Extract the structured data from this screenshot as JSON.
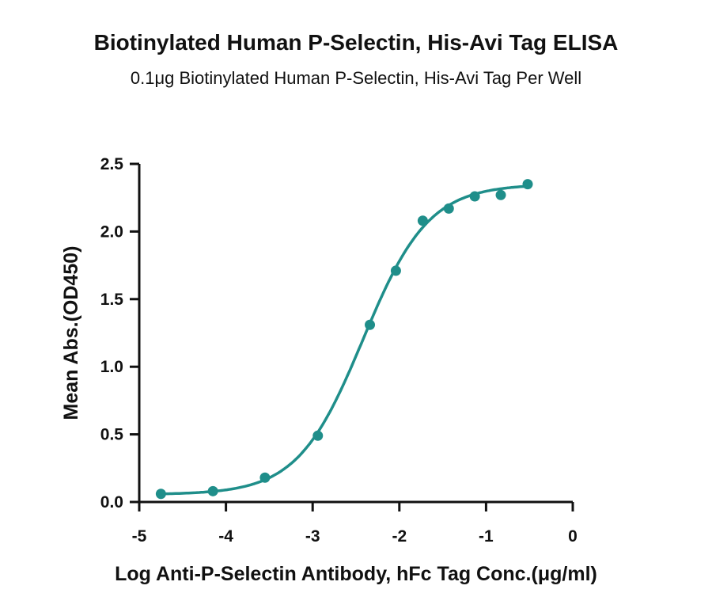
{
  "chart_data": {
    "type": "scatter",
    "title": "Biotinylated Human P-Selectin, His-Avi Tag ELISA",
    "subtitle": "0.1μg Biotinylated Human P-Selectin, His-Avi Tag Per Well",
    "xlabel": "Log Anti-P-Selectin Antibody, hFc Tag Conc.(μg/ml)",
    "ylabel": "Mean Abs.(OD450)",
    "xlim": [
      -5,
      0
    ],
    "ylim": [
      0,
      2.5
    ],
    "xticks": [
      -5,
      -4,
      -3,
      -2,
      -1,
      0
    ],
    "xtick_labels": [
      "-5",
      "-4",
      "-3",
      "-2",
      "-1",
      "0"
    ],
    "yticks": [
      0,
      0.5,
      1.0,
      1.5,
      2.0,
      2.5
    ],
    "ytick_labels": [
      "0.0",
      "0.5",
      "1.0",
      "1.5",
      "2.0",
      "2.5"
    ],
    "grid": false,
    "series": [
      {
        "x": [
          -4.75,
          -4.15,
          -3.55,
          -2.94,
          -2.34,
          -2.04,
          -1.73,
          -1.43,
          -1.13,
          -0.83,
          -0.52
        ],
        "y": [
          0.06,
          0.08,
          0.18,
          0.49,
          1.31,
          1.71,
          2.08,
          2.17,
          2.26,
          2.27,
          2.35
        ],
        "color": "#1f8e8a",
        "fit": "sigmoid"
      }
    ]
  }
}
